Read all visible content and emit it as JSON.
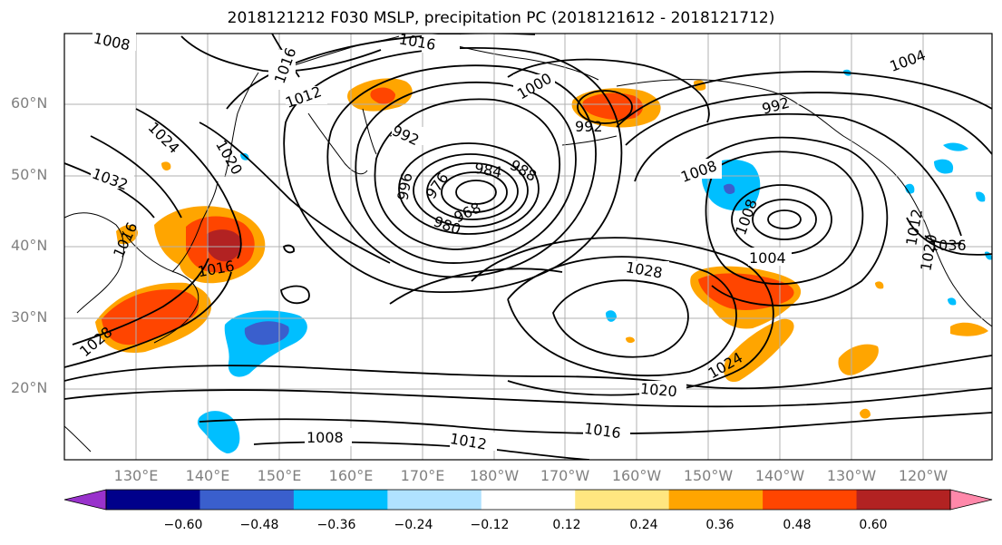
{
  "title": "2018121212 F030 MSLP, precipitation PC (2018121612 - 2018121712)",
  "lat_labels": [
    "60°N",
    "50°N",
    "40°N",
    "30°N",
    "20°N"
  ],
  "lon_labels": [
    "130°E",
    "140°E",
    "150°E",
    "160°E",
    "170°E",
    "180°W",
    "170°W",
    "160°W",
    "150°W",
    "140°W",
    "130°W",
    "120°W"
  ],
  "contour_labels": {
    "l1008a": "1008",
    "l1016a": "1016",
    "l1016b": "1016",
    "l1012a": "1012",
    "l1024a": "1024",
    "l1020a": "1020",
    "l1032": "1032",
    "l1016c": "1016",
    "l1016d": "1016",
    "l1028a": "1028",
    "l992a": "992",
    "l996": "996",
    "l976": "976",
    "l984": "984",
    "l988": "988",
    "l968": "968",
    "l980": "980",
    "l1000": "1000",
    "l992b": "992",
    "l992c": "992",
    "l1004a": "1004",
    "l1008b": "1008",
    "l1008c": "1008",
    "l1004b": "1004",
    "l1028b": "1028",
    "l1024b": "1024",
    "l1020b": "1020",
    "l1016e": "1016",
    "l1012b": "1012",
    "l1008d": "1008",
    "l1036": "1036",
    "l1012c": "1012",
    "l1020c": "1020"
  },
  "colorbar": {
    "colors": [
      "#9932cc",
      "#00008b",
      "#3a5fcd",
      "#00bfff",
      "#b0e2ff",
      "#ffffff",
      "#ffe680",
      "#ffa500",
      "#ff4500",
      "#b22222",
      "#ff88aa"
    ],
    "ticks": [
      "−0.60",
      "−0.48",
      "−0.36",
      "−0.24",
      "−0.12",
      "0.12",
      "0.24",
      "0.36",
      "0.48",
      "0.60"
    ]
  }
}
